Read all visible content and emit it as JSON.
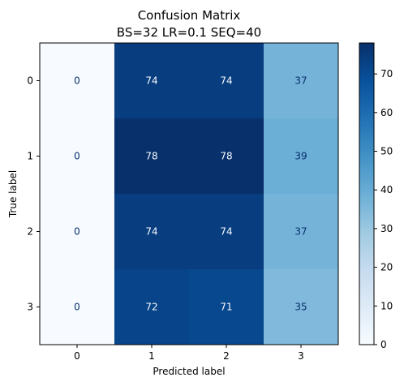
{
  "chart_data": {
    "type": "heatmap",
    "title": "Confusion Matrix",
    "subtitle": "BS=32 LR=0.1 SEQ=40",
    "xlabel": "Predicted label",
    "ylabel": "True label",
    "x_categories": [
      "0",
      "1",
      "2",
      "3"
    ],
    "y_categories": [
      "0",
      "1",
      "2",
      "3"
    ],
    "values": [
      [
        0,
        74,
        74,
        37
      ],
      [
        0,
        78,
        78,
        39
      ],
      [
        0,
        74,
        74,
        37
      ],
      [
        0,
        72,
        71,
        35
      ]
    ],
    "colormap": "Blues",
    "colorbar": {
      "min": 0,
      "max": 78,
      "ticks": [
        0,
        10,
        20,
        30,
        40,
        50,
        60,
        70
      ]
    },
    "colors": {
      "low": "#f7fbff",
      "high": "#08306b",
      "dark_text": "#08306b",
      "light_text": "#f7fbff"
    }
  }
}
